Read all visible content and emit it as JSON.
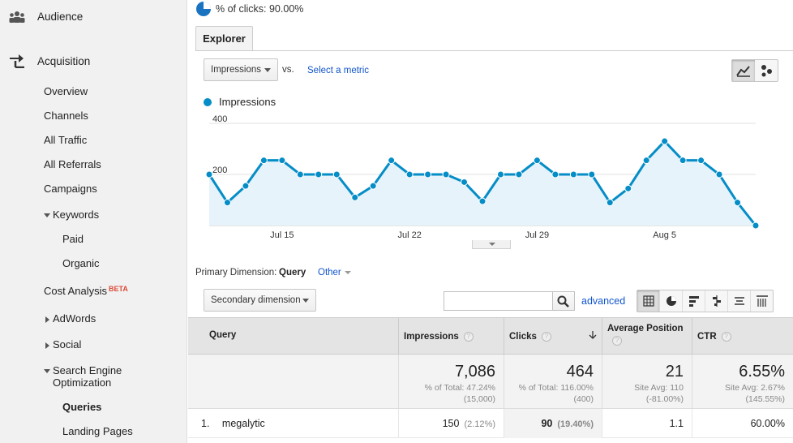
{
  "sidebar": {
    "audience": "Audience",
    "acquisition": "Acquisition",
    "overview": "Overview",
    "channels": "Channels",
    "all_traffic": "All Traffic",
    "all_referrals": "All Referrals",
    "campaigns": "Campaigns",
    "keywords": "Keywords",
    "paid": "Paid",
    "organic": "Organic",
    "cost_analysis": "Cost Analysis",
    "beta": "BETA",
    "adwords": "AdWords",
    "social": "Social",
    "seo_line1": "Search Engine",
    "seo_line2": "Optimization",
    "queries": "Queries",
    "landing_pages": "Landing Pages"
  },
  "header": {
    "pct_clicks": "% of clicks: 90.00%",
    "explorer_tab": "Explorer"
  },
  "controls": {
    "metric_selected": "Impressions",
    "vs": "vs.",
    "select_metric": "Select a metric"
  },
  "chart_data": {
    "type": "area",
    "series": [
      {
        "name": "Impressions",
        "values": [
          200,
          90,
          155,
          255,
          255,
          200,
          200,
          200,
          110,
          155,
          255,
          200,
          200,
          200,
          170,
          95,
          200,
          200,
          255,
          200,
          200,
          200,
          90,
          145,
          255,
          330,
          255,
          255,
          200,
          90,
          0
        ]
      }
    ],
    "xticks": [
      "Jul 15",
      "Jul 22",
      "Jul 29",
      "Aug 5"
    ],
    "xtick_indices": [
      4,
      11,
      18,
      25
    ],
    "yticks": [
      200,
      400
    ],
    "ylim": [
      0,
      400
    ],
    "grid": true,
    "color": "#058dc7",
    "fill": "#e6f3fa"
  },
  "dimension": {
    "label": "Primary Dimension:",
    "active": "Query",
    "other": "Other",
    "secondary": "Secondary dimension",
    "advanced": "advanced"
  },
  "table": {
    "headers": {
      "query": "Query",
      "impressions": "Impressions",
      "clicks": "Clicks",
      "avg_pos_line1": "Average Position",
      "ctr": "CTR"
    },
    "totals": {
      "impressions": "7,086",
      "impressions_sub1": "% of Total: 47.24%",
      "impressions_sub2": "(15,000)",
      "clicks": "464",
      "clicks_sub1": "% of Total: 116.00%",
      "clicks_sub2": "(400)",
      "avg_pos": "21",
      "avg_pos_sub1": "Site Avg: 110",
      "avg_pos_sub2": "(-81.00%)",
      "ctr": "6.55%",
      "ctr_sub1": "Site Avg: 2.67%",
      "ctr_sub2": "(145.55%)"
    },
    "rows": [
      {
        "index": "1.",
        "query": "megalytic",
        "impressions": "150",
        "impressions_pct": "(2.12%)",
        "clicks": "90",
        "clicks_pct": "(19.40%)",
        "avg_pos": "1.1",
        "ctr": "60.00%"
      }
    ]
  }
}
